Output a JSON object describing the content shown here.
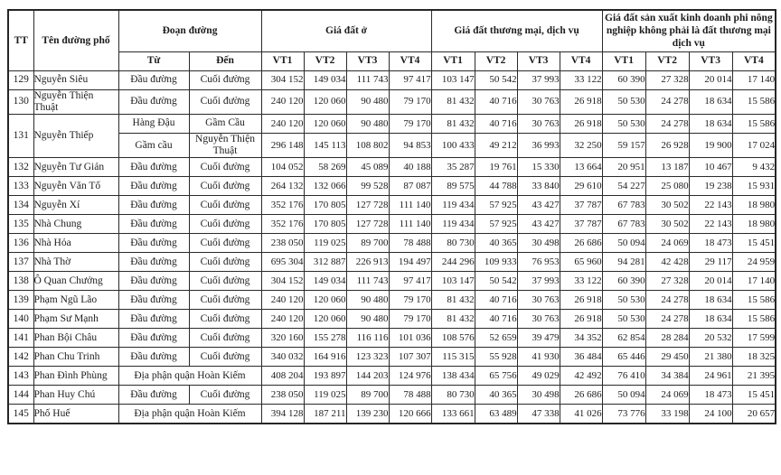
{
  "table": {
    "border_color": "#2a2a2a",
    "text_color": "#1c1c1c",
    "header": {
      "tt": "TT",
      "street": "Tên đường phố",
      "segment": "Đoạn đường",
      "from": "Từ",
      "to": "Đến",
      "groups": [
        {
          "label": "Giá đất ở"
        },
        {
          "label": "Giá đất thương mại, dịch vụ"
        },
        {
          "label": "Giá đất sản xuất kinh doanh phi nông nghiệp không phải là đất thương mại dịch vụ"
        }
      ],
      "vt_labels": [
        "VT1",
        "VT2",
        "VT3",
        "VT4"
      ]
    },
    "rows": [
      {
        "tt": "129",
        "street": "Nguyễn Siêu",
        "segments": [
          {
            "from": "Đầu đường",
            "to": "Cuối đường",
            "values": [
              "304 152",
              "149 034",
              "111 743",
              "97 417",
              "103 147",
              "50 542",
              "37 993",
              "33 122",
              "60 390",
              "27 328",
              "20 014",
              "17 140"
            ]
          }
        ]
      },
      {
        "tt": "130",
        "street": "Nguyễn Thiện Thuật",
        "segments": [
          {
            "from": "Đầu đường",
            "to": "Cuối đường",
            "values": [
              "240 120",
              "120 060",
              "90 480",
              "79 170",
              "81 432",
              "40 716",
              "30 763",
              "26 918",
              "50 530",
              "24 278",
              "18 634",
              "15 586"
            ]
          }
        ]
      },
      {
        "tt": "131",
        "street": "Nguyễn Thiếp",
        "segments": [
          {
            "from": "Hàng Đậu",
            "to": "Gầm Cầu",
            "values": [
              "240 120",
              "120 060",
              "90 480",
              "79 170",
              "81 432",
              "40 716",
              "30 763",
              "26 918",
              "50 530",
              "24 278",
              "18 634",
              "15 586"
            ]
          },
          {
            "from": "Gầm cầu",
            "to": "Nguyễn Thiện Thuật",
            "values": [
              "296 148",
              "145 113",
              "108 802",
              "94 853",
              "100 433",
              "49 212",
              "36 993",
              "32 250",
              "59 157",
              "26 928",
              "19 900",
              "17 024"
            ]
          }
        ]
      },
      {
        "tt": "132",
        "street": "Nguyễn Tư Giản",
        "segments": [
          {
            "from": "Đầu đường",
            "to": "Cuối đường",
            "values": [
              "104 052",
              "58 269",
              "45 089",
              "40 188",
              "35 287",
              "19 761",
              "15 330",
              "13 664",
              "20 951",
              "13 187",
              "10 467",
              "9 432"
            ]
          }
        ]
      },
      {
        "tt": "133",
        "street": "Nguyễn Văn Tố",
        "segments": [
          {
            "from": "Đầu đường",
            "to": "Cuối đường",
            "values": [
              "264 132",
              "132 066",
              "99 528",
              "87 087",
              "89 575",
              "44 788",
              "33 840",
              "29 610",
              "54 227",
              "25 080",
              "19 238",
              "15 931"
            ]
          }
        ]
      },
      {
        "tt": "134",
        "street": "Nguyễn Xí",
        "segments": [
          {
            "from": "Đầu đường",
            "to": "Cuối đường",
            "values": [
              "352 176",
              "170 805",
              "127 728",
              "111 140",
              "119 434",
              "57 925",
              "43 427",
              "37 787",
              "67 783",
              "30 502",
              "22 143",
              "18 980"
            ]
          }
        ]
      },
      {
        "tt": "135",
        "street": "Nhà Chung",
        "segments": [
          {
            "from": "Đầu đường",
            "to": "Cuối đường",
            "values": [
              "352 176",
              "170 805",
              "127 728",
              "111 140",
              "119 434",
              "57 925",
              "43 427",
              "37 787",
              "67 783",
              "30 502",
              "22 143",
              "18 980"
            ]
          }
        ]
      },
      {
        "tt": "136",
        "street": "Nhà Hỏa",
        "segments": [
          {
            "from": "Đầu đường",
            "to": "Cuối đường",
            "values": [
              "238 050",
              "119 025",
              "89 700",
              "78 488",
              "80 730",
              "40 365",
              "30 498",
              "26 686",
              "50 094",
              "24 069",
              "18 473",
              "15 451"
            ]
          }
        ]
      },
      {
        "tt": "137",
        "street": "Nhà Thờ",
        "segments": [
          {
            "from": "Đầu đường",
            "to": "Cuối đường",
            "values": [
              "695 304",
              "312 887",
              "226 913",
              "194 497",
              "244 296",
              "109 933",
              "76 953",
              "65 960",
              "94 281",
              "42 428",
              "29 117",
              "24 959"
            ]
          }
        ]
      },
      {
        "tt": "138",
        "street": "Ô Quan Chưởng",
        "segments": [
          {
            "from": "Đầu đường",
            "to": "Cuối đường",
            "values": [
              "304 152",
              "149 034",
              "111 743",
              "97 417",
              "103 147",
              "50 542",
              "37 993",
              "33 122",
              "60 390",
              "27 328",
              "20 014",
              "17 140"
            ]
          }
        ]
      },
      {
        "tt": "139",
        "street": "Phạm Ngũ Lão",
        "segments": [
          {
            "from": "Đầu đường",
            "to": "Cuối đường",
            "values": [
              "240 120",
              "120 060",
              "90 480",
              "79 170",
              "81 432",
              "40 716",
              "30 763",
              "26 918",
              "50 530",
              "24 278",
              "18 634",
              "15 586"
            ]
          }
        ]
      },
      {
        "tt": "140",
        "street": "Phạm Sư Mạnh",
        "segments": [
          {
            "from": "Đầu đường",
            "to": "Cuối đường",
            "values": [
              "240 120",
              "120 060",
              "90 480",
              "79 170",
              "81 432",
              "40 716",
              "30 763",
              "26 918",
              "50 530",
              "24 278",
              "18 634",
              "15 586"
            ]
          }
        ]
      },
      {
        "tt": "141",
        "street": "Phan Bội Châu",
        "segments": [
          {
            "from": "Đầu đường",
            "to": "Cuối đường",
            "values": [
              "320 160",
              "155 278",
              "116 116",
              "101 036",
              "108 576",
              "52 659",
              "39 479",
              "34 352",
              "62 854",
              "28 284",
              "20 532",
              "17 599"
            ]
          }
        ]
      },
      {
        "tt": "142",
        "street": "Phan Chu Trinh",
        "segments": [
          {
            "from": "Đầu đường",
            "to": "Cuối đường",
            "values": [
              "340 032",
              "164 916",
              "123 323",
              "107 307",
              "115 315",
              "55 928",
              "41 930",
              "36 484",
              "65 446",
              "29 450",
              "21 380",
              "18 325"
            ]
          }
        ]
      },
      {
        "tt": "143",
        "street": "Phan Đình Phùng",
        "segments": [
          {
            "merged": "Địa phận quận Hoàn Kiếm",
            "values": [
              "408 204",
              "193 897",
              "144 203",
              "124 976",
              "138 434",
              "65 756",
              "49 029",
              "42 492",
              "76 410",
              "34 384",
              "24 961",
              "21 395"
            ]
          }
        ]
      },
      {
        "tt": "144",
        "street": "Phan Huy Chú",
        "segments": [
          {
            "from": "Đầu đường",
            "to": "Cuối đường",
            "values": [
              "238 050",
              "119 025",
              "89 700",
              "78 488",
              "80 730",
              "40 365",
              "30 498",
              "26 686",
              "50 094",
              "24 069",
              "18 473",
              "15 451"
            ]
          }
        ]
      },
      {
        "tt": "145",
        "street": "Phố Huế",
        "segments": [
          {
            "merged": "Địa phận quận Hoàn Kiếm",
            "values": [
              "394 128",
              "187 211",
              "139 230",
              "120 666",
              "133 661",
              "63 489",
              "47 338",
              "41 026",
              "73 776",
              "33 198",
              "24 100",
              "20 657"
            ]
          }
        ]
      }
    ]
  }
}
